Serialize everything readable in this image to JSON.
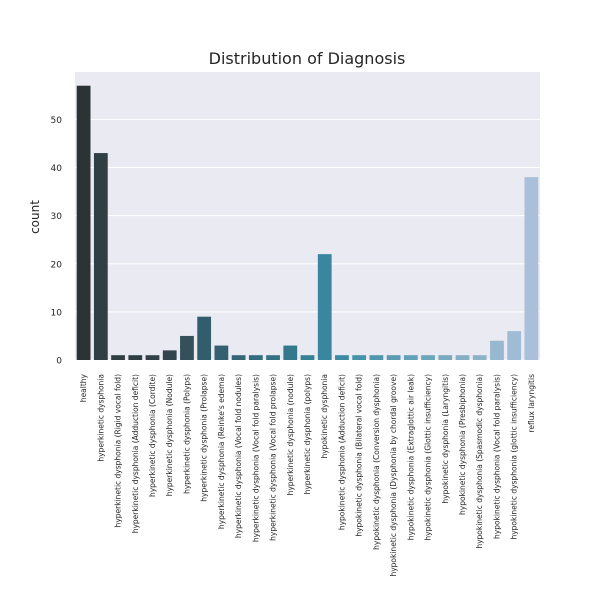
{
  "chart_data": {
    "type": "bar",
    "title": "Distribution of Diagnosis",
    "xlabel": "",
    "ylabel": "count",
    "ylim": [
      0,
      59.85
    ],
    "yticks": [
      0,
      10,
      20,
      30,
      40,
      50
    ],
    "grid": true,
    "legend": "none",
    "background": "#EAEAF2",
    "categories": [
      "healthy",
      "hyperkinetic dysphonia",
      "hyperkinetic dysphonia  (Rigid vocal fold)",
      "hyperkinetic dysphonia (Adduction deficit)",
      "hyperkinetic dysphonia (Cordite)",
      "hyperkinetic dysphonia (Nodule)",
      "hyperkinetic dysphonia (Polyps)",
      "hyperkinetic dysphonia (Prolapse)",
      "hyperkinetic dysphonia (Reinke's edema)",
      "hyperkinetic dysphonia (Vocal fold nodules)",
      "hyperkinetic dysphonia (Vocal fold paralysis)",
      "hyperkinetic dysphonia (Vocal fold prolapse)",
      "hyperkinetic dysphonia (nodule)",
      "hyperkinetic dysphonia (polyps)",
      "hypokinetic dysphonia",
      "hypokinetic dysphonia (Adduction deficit)",
      "hypokinetic dysphonia (Bilateral vocal fold)",
      "hypokinetic dysphonia (Conversion dysphonia)",
      "hypokinetic dysphonia (Dysphonia by chordal groove)",
      "hypokinetic dysphonia (Extraglottic air leak)",
      "hypokinetic dysphonia (Glottic insufficiency)",
      "hypokinetic dysphonia (Laryngitis)",
      "hypokinetic dysphonia (Presbiphonia)",
      "hypokinetic dysphonia (Spasmodic dysphonia)",
      "hypokinetic dysphonia (Vocal fold paralysis)",
      "hypokinetic dysphonia (glottic insufficiency)",
      "reflux laryngitis"
    ],
    "values": [
      57,
      43,
      1,
      1,
      1,
      2,
      5,
      9,
      3,
      1,
      1,
      1,
      3,
      1,
      22,
      1,
      1,
      1,
      1,
      1,
      1,
      1,
      1,
      1,
      4,
      6,
      38
    ],
    "colors": [
      "#2C3335",
      "#2F3F44",
      "#313E42",
      "#313F44",
      "#324248",
      "#33454C",
      "#34505B",
      "#325D6C",
      "#35606F",
      "#336777",
      "#326C7E",
      "#347184",
      "#34788D",
      "#368196",
      "#3886A0",
      "#3C8BA3",
      "#4692AB",
      "#5196AF",
      "#5A9BB1",
      "#63A1B6",
      "#6CA6B9",
      "#7AAABD",
      "#85B0C3",
      "#8DB4C6",
      "#98B8D0",
      "#A0BBD6",
      "#AABFDA"
    ]
  }
}
